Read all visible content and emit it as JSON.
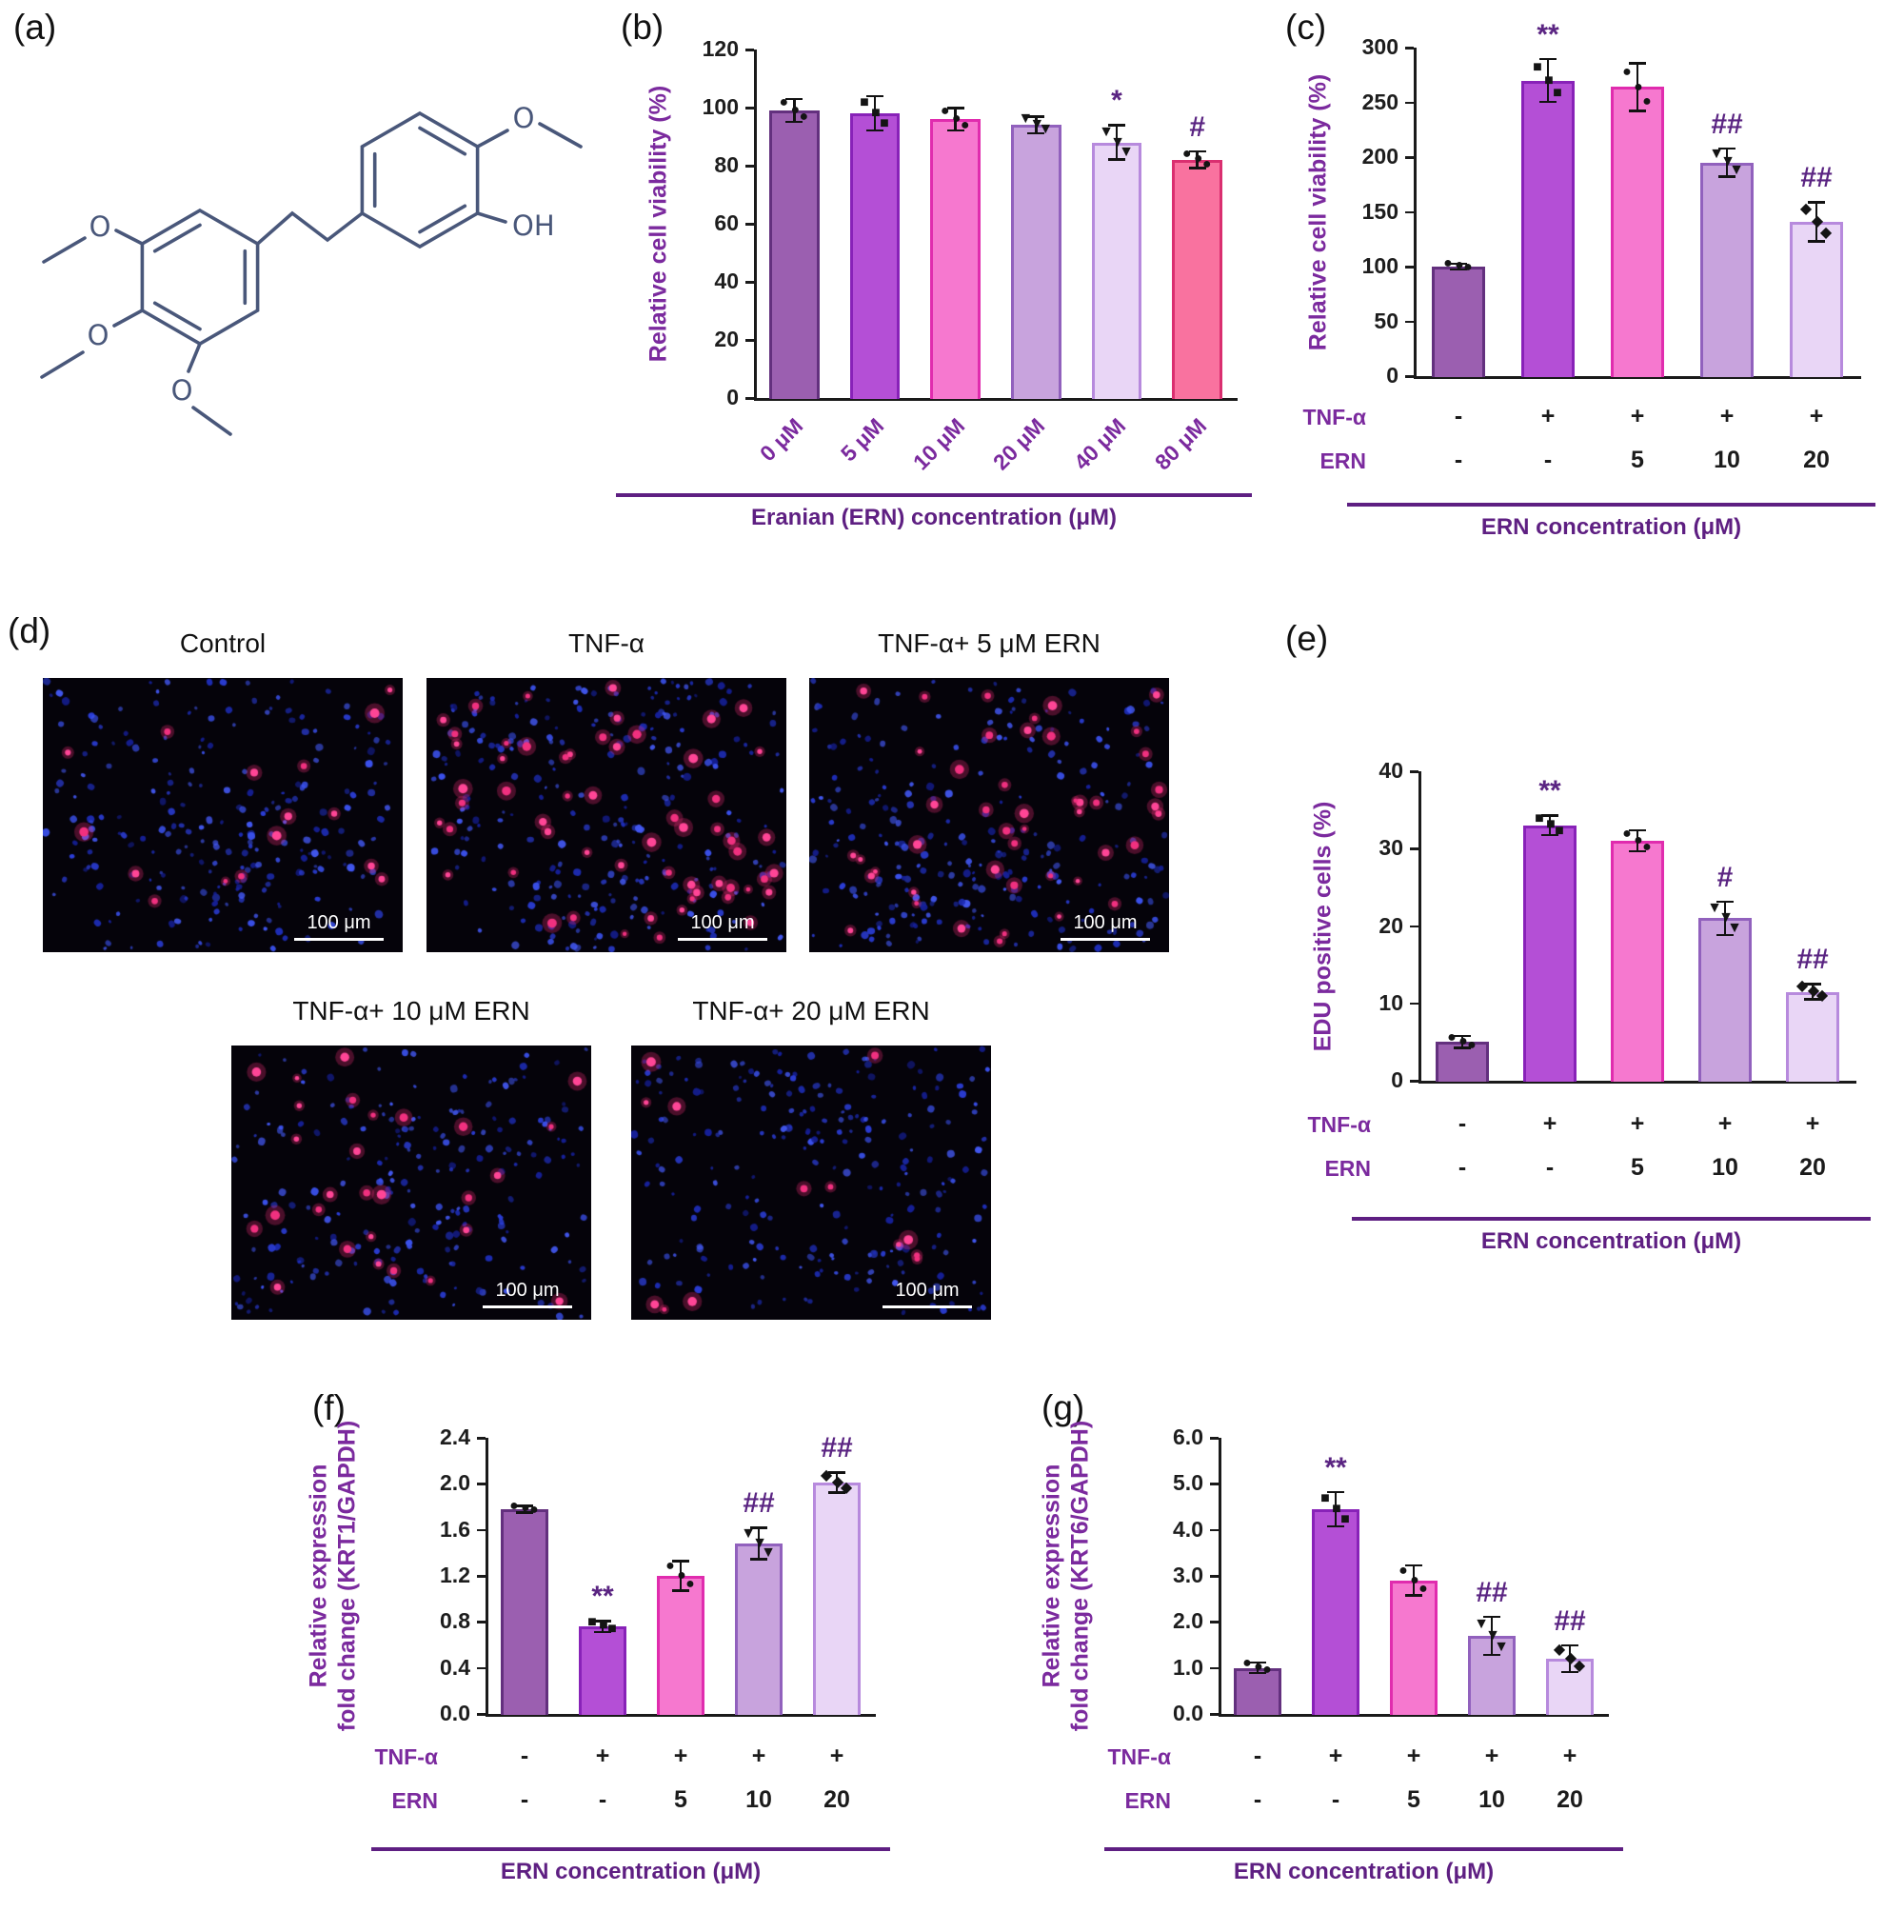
{
  "colors": {
    "accent_purple": "#7b2a9e",
    "underline": "#5e1f82",
    "annotation": "#5a2482",
    "axis": "#1a1a1a",
    "molecule_line": "#49577a"
  },
  "panel_letters": {
    "a": "(a)",
    "b": "(b)",
    "c": "(c)",
    "d": "(d)",
    "e": "(e)",
    "f": "(f)",
    "g": "(g)"
  },
  "molecule": {
    "atoms": [
      "O",
      "O",
      "O",
      "O",
      "OH"
    ]
  },
  "microscopy": {
    "scale_label": "100 μm",
    "images": [
      {
        "label": "Control",
        "pink_count": 16,
        "blue_count": 250,
        "seed": 11
      },
      {
        "label": "TNF-α",
        "pink_count": 58,
        "blue_count": 265,
        "seed": 22
      },
      {
        "label": "TNF-α+ 5 μM ERN",
        "pink_count": 46,
        "blue_count": 255,
        "seed": 33
      },
      {
        "label": "TNF-α+ 10 μM ERN",
        "pink_count": 28,
        "blue_count": 235,
        "seed": 44
      },
      {
        "label": "TNF-α+ 20 μM ERN",
        "pink_count": 13,
        "blue_count": 245,
        "seed": 55
      }
    ]
  },
  "chart_data": [
    {
      "id": "b",
      "type": "bar",
      "title": "",
      "ylabel": "Relative cell viability (%)",
      "xlabel": "Eranian (ERN) concentration (μM)",
      "ylim": [
        0,
        120
      ],
      "ytick_step": 20,
      "ydecimals": 0,
      "categories": [
        "0 μM",
        "5 μM",
        "10 μM",
        "20 μM",
        "40 μM",
        "80 μM"
      ],
      "values": [
        99,
        98,
        96,
        94,
        88,
        82
      ],
      "errors": [
        4,
        6,
        4,
        3,
        6,
        3
      ],
      "annotations": [
        "",
        "",
        "",
        "",
        "*",
        "#"
      ],
      "bar_colors": [
        "#9b5fb0",
        "#b44fd6",
        "#f678cf",
        "#c8a3dd",
        "#e9d6f6",
        "#f9729f"
      ],
      "bar_borders": [
        "#63307e",
        "#8822b8",
        "#e02cae",
        "#9161bd",
        "#b78add",
        "#da2f70"
      ],
      "markers": [
        "circle",
        "square",
        "circle",
        "triangle",
        "triangle",
        "circle"
      ],
      "grid": "off",
      "legend": "none"
    },
    {
      "id": "c",
      "type": "bar",
      "title": "",
      "ylabel": "Relative cell viability (%)",
      "xlabel": "ERN concentration (μM)",
      "ylim": [
        0,
        300
      ],
      "ytick_step": 50,
      "ydecimals": 0,
      "group_rows": [
        {
          "label": "TNF-α",
          "values": [
            "-",
            "+",
            "+",
            "+",
            "+"
          ]
        },
        {
          "label": "ERN",
          "values": [
            "-",
            "-",
            "5",
            "10",
            "20"
          ]
        }
      ],
      "values": [
        100,
        270,
        264,
        195,
        141
      ],
      "errors": [
        3,
        20,
        22,
        13,
        18
      ],
      "annotations": [
        "",
        "**",
        "",
        "##",
        "##"
      ],
      "bar_colors": [
        "#9b5fb0",
        "#b44fd6",
        "#f678cf",
        "#c8a3dd",
        "#e9d6f6"
      ],
      "bar_borders": [
        "#63307e",
        "#8822b8",
        "#e02cae",
        "#9161bd",
        "#b78add"
      ],
      "markers": [
        "circle",
        "square",
        "circle",
        "triangle",
        "diamond"
      ],
      "grid": "off",
      "legend": "none"
    },
    {
      "id": "e",
      "type": "bar",
      "title": "",
      "ylabel": "EDU positive cells (%)",
      "xlabel": "ERN concentration (μM)",
      "ylim": [
        0,
        40
      ],
      "ytick_step": 10,
      "ydecimals": 0,
      "group_rows": [
        {
          "label": "TNF-α",
          "values": [
            "-",
            "+",
            "+",
            "+",
            "+"
          ]
        },
        {
          "label": "ERN",
          "values": [
            "-",
            "-",
            "5",
            "10",
            "20"
          ]
        }
      ],
      "values": [
        5,
        33,
        31,
        21,
        11.5
      ],
      "errors": [
        0.8,
        1.3,
        1.4,
        2.2,
        1.0
      ],
      "annotations": [
        "",
        "**",
        "",
        "#",
        "##"
      ],
      "bar_colors": [
        "#9b5fb0",
        "#b44fd6",
        "#f678cf",
        "#c8a3dd",
        "#e9d6f6"
      ],
      "bar_borders": [
        "#63307e",
        "#8822b8",
        "#e02cae",
        "#9161bd",
        "#b78add"
      ],
      "markers": [
        "circle",
        "square",
        "circle",
        "triangle",
        "diamond"
      ],
      "grid": "off",
      "legend": "none"
    },
    {
      "id": "f",
      "type": "bar",
      "title": "",
      "ylabel": "Relative expression\nfold change (KRT1/GAPDH)",
      "xlabel": "ERN concentration (μM)",
      "ylim": [
        0,
        2.4
      ],
      "ytick_step": 0.4,
      "ydecimals": 1,
      "group_rows": [
        {
          "label": "TNF-α",
          "values": [
            "-",
            "+",
            "+",
            "+",
            "+"
          ]
        },
        {
          "label": "ERN",
          "values": [
            "-",
            "-",
            "5",
            "10",
            "20"
          ]
        }
      ],
      "values": [
        1.78,
        0.76,
        1.2,
        1.48,
        2.01
      ],
      "errors": [
        0.03,
        0.05,
        0.13,
        0.14,
        0.09
      ],
      "annotations": [
        "",
        "**",
        "",
        "##",
        "##"
      ],
      "bar_colors": [
        "#9b5fb0",
        "#b44fd6",
        "#f678cf",
        "#c8a3dd",
        "#e9d6f6"
      ],
      "bar_borders": [
        "#63307e",
        "#8822b8",
        "#e02cae",
        "#9161bd",
        "#b78add"
      ],
      "markers": [
        "circle",
        "square",
        "circle",
        "triangle",
        "diamond"
      ],
      "grid": "off",
      "legend": "none"
    },
    {
      "id": "g",
      "type": "bar",
      "title": "",
      "ylabel": "Relative expression\nfold change (KRT6/GAPDH)",
      "xlabel": "ERN concentration (μM)",
      "ylim": [
        0,
        6
      ],
      "ytick_step": 1,
      "ydecimals": 1,
      "group_rows": [
        {
          "label": "TNF-α",
          "values": [
            "-",
            "+",
            "+",
            "+",
            "+"
          ]
        },
        {
          "label": "ERN",
          "values": [
            "-",
            "-",
            "5",
            "10",
            "20"
          ]
        }
      ],
      "values": [
        1.0,
        4.45,
        2.9,
        1.7,
        1.2
      ],
      "errors": [
        0.12,
        0.38,
        0.33,
        0.42,
        0.3
      ],
      "annotations": [
        "",
        "**",
        "",
        "##",
        "##"
      ],
      "bar_colors": [
        "#9b5fb0",
        "#b44fd6",
        "#f678cf",
        "#c8a3dd",
        "#e9d6f6"
      ],
      "bar_borders": [
        "#63307e",
        "#8822b8",
        "#e02cae",
        "#9161bd",
        "#b78add"
      ],
      "markers": [
        "circle",
        "square",
        "circle",
        "triangle",
        "diamond"
      ],
      "grid": "off",
      "legend": "none"
    }
  ]
}
